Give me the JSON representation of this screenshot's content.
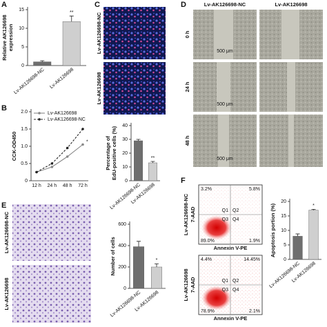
{
  "panel_letters": [
    "A",
    "B",
    "C",
    "D",
    "E",
    "F"
  ],
  "panel_c": {
    "labels": [
      "Lv-AK126698-NC",
      "Lv-AK126698"
    ]
  },
  "panel_d": {
    "columns": [
      "Lv-AK126698-NC",
      "Lv-AK126698"
    ],
    "rows": [
      "0 h",
      "24 h",
      "48 h"
    ],
    "scale_bar": [
      "500 μm",
      "500 μm",
      "500 μm"
    ]
  },
  "panel_e": {
    "labels": [
      "Lv-AK126698-NC",
      "Lv-AK126698"
    ]
  },
  "panel_f": {
    "plots": [
      {
        "label": "Lv-AK126698-NC",
        "y_axis": "7-AAD",
        "x_axis": "Annexin V-PE",
        "quadrant_values": [
          "3.2%",
          "5.8%",
          "89.0%",
          "1.9%"
        ],
        "quadrant_names": [
          "Q1",
          "Q2",
          "Q3",
          "Q4"
        ]
      },
      {
        "label": "Lv-AK126698",
        "y_axis": "7-AAD",
        "x_axis": "Annexin V-PE",
        "quadrant_values": [
          "4.4%",
          "14.45%",
          "78.9%",
          "2.1%"
        ],
        "quadrant_names": [
          "Q1",
          "Q2",
          "Q3",
          "Q4"
        ]
      }
    ]
  },
  "chart_data": [
    {
      "type": "bar",
      "ylabel": [
        "Relative AK126698",
        "expression"
      ],
      "categories": [
        "Lv-AK126698-NC",
        "Lv-AK126698"
      ],
      "values": [
        1,
        11.8
      ],
      "errors": [
        0.3,
        1.5
      ],
      "value_annotations": [
        null,
        "**"
      ],
      "colors": [
        "#6e6e6e",
        "#cfcfcf"
      ],
      "ylim": [
        0,
        15
      ],
      "yticks": [
        0,
        5,
        10,
        15
      ]
    },
    {
      "type": "line",
      "ylabel": [
        "CCK-OD450"
      ],
      "categories": [
        "12 h",
        "24 h",
        "48 h",
        "72 h"
      ],
      "series": [
        {
          "name": "Lv-AK126698",
          "color": "#888888",
          "style": "solid",
          "values": [
            0.25,
            0.4,
            0.7,
            1.05
          ]
        },
        {
          "name": "Lv-AK126698-NC",
          "color": "#222222",
          "style": "dashed",
          "values": [
            0.25,
            0.5,
            0.95,
            1.5
          ]
        }
      ],
      "annotation": "*",
      "ylim": [
        0,
        2
      ],
      "yticks": [
        0,
        {
          "value": 0.5,
          "label": "0.5"
        },
        {
          "value": 1,
          "label": "1.0"
        },
        {
          "value": 1.5,
          "label": "1.5"
        },
        {
          "value": 2,
          "label": "2.0"
        }
      ],
      "legend": "top-left"
    },
    {
      "type": "bar",
      "ylabel": [
        "Percentage of",
        "EdU-positive cells (%)"
      ],
      "categories": [
        "Lv-AK126698-NC",
        "Lv-AK126698"
      ],
      "values": [
        29,
        13
      ],
      "errors": [
        1,
        1
      ],
      "value_annotations": [
        null,
        "**"
      ],
      "colors": [
        "#6e6e6e",
        "#cfcfcf"
      ],
      "ylim": [
        0,
        40
      ],
      "yticks": [
        0,
        10,
        20,
        30,
        40
      ]
    },
    {
      "type": "bar",
      "ylabel": [
        "Number of cells"
      ],
      "categories": [
        "Lv-AK126698-NC",
        "Lv-AK126698"
      ],
      "values": [
        390,
        200
      ],
      "errors": [
        50,
        30
      ],
      "value_annotations": [
        null,
        "*"
      ],
      "colors": [
        "#6e6e6e",
        "#cfcfcf"
      ],
      "ylim": [
        0,
        600
      ],
      "yticks": [
        0,
        200,
        400,
        600
      ]
    },
    {
      "type": "bar",
      "ylabel": [
        "Apoptosis portion (%)"
      ],
      "categories": [
        "Lv-AK126698-NC",
        "Lv-AK126698"
      ],
      "values": [
        8,
        17
      ],
      "errors": [
        0.8,
        0.3
      ],
      "value_annotations": [
        null,
        "*"
      ],
      "colors": [
        "#6e6e6e",
        "#cfcfcf"
      ],
      "ylim": [
        0,
        20
      ],
      "yticks": [
        0,
        5,
        10,
        15,
        20
      ]
    }
  ]
}
